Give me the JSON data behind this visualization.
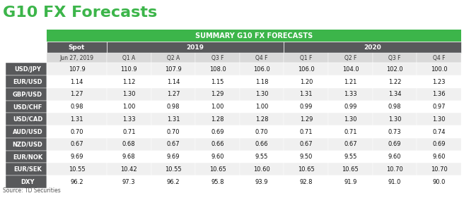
{
  "title": "G10 FX Forecasts",
  "source": "Source: TD Securities",
  "banner_text": "SUMMARY G10 FX FORECASTS",
  "banner_color": "#3cb54a",
  "header_bg_color": "#58595b",
  "subheader_bg_color": "#d9d9d9",
  "row_label_bg_color": "#58595b",
  "row_even_color": "#f0f0f0",
  "row_odd_color": "#ffffff",
  "col_headers_row2": [
    "Jun 27, 2019",
    "Q1 A",
    "Q2 A",
    "Q3 F",
    "Q4 F",
    "Q1 F",
    "Q2 F",
    "Q3 F",
    "Q4 F"
  ],
  "row_labels": [
    "USD/JPY",
    "EUR/USD",
    "GBP/USD",
    "USD/CHF",
    "USD/CAD",
    "AUD/USD",
    "NZD/USD",
    "EUR/NOK",
    "EUR/SEK",
    "DXY"
  ],
  "table_data": [
    [
      "107.9",
      "110.9",
      "107.9",
      "108.0",
      "106.0",
      "106.0",
      "104.0",
      "102.0",
      "100.0"
    ],
    [
      "1.14",
      "1.12",
      "1.14",
      "1.15",
      "1.18",
      "1.20",
      "1.21",
      "1.22",
      "1.23"
    ],
    [
      "1.27",
      "1.30",
      "1.27",
      "1.29",
      "1.30",
      "1.31",
      "1.33",
      "1.34",
      "1.36"
    ],
    [
      "0.98",
      "1.00",
      "0.98",
      "1.00",
      "1.00",
      "0.99",
      "0.99",
      "0.98",
      "0.97"
    ],
    [
      "1.31",
      "1.33",
      "1.31",
      "1.28",
      "1.28",
      "1.29",
      "1.30",
      "1.30",
      "1.30"
    ],
    [
      "0.70",
      "0.71",
      "0.70",
      "0.69",
      "0.70",
      "0.71",
      "0.71",
      "0.73",
      "0.74"
    ],
    [
      "0.67",
      "0.68",
      "0.67",
      "0.66",
      "0.66",
      "0.67",
      "0.67",
      "0.69",
      "0.69"
    ],
    [
      "9.69",
      "9.68",
      "9.69",
      "9.60",
      "9.55",
      "9.50",
      "9.55",
      "9.60",
      "9.60"
    ],
    [
      "10.55",
      "10.42",
      "10.55",
      "10.65",
      "10.60",
      "10.65",
      "10.65",
      "10.70",
      "10.70"
    ],
    [
      "96.2",
      "97.3",
      "96.2",
      "95.8",
      "93.9",
      "92.8",
      "91.9",
      "91.0",
      "90.0"
    ]
  ],
  "title_color": "#3cb54a",
  "title_fontsize": 16,
  "fig_width": 6.56,
  "fig_height": 2.81,
  "dpi": 100
}
